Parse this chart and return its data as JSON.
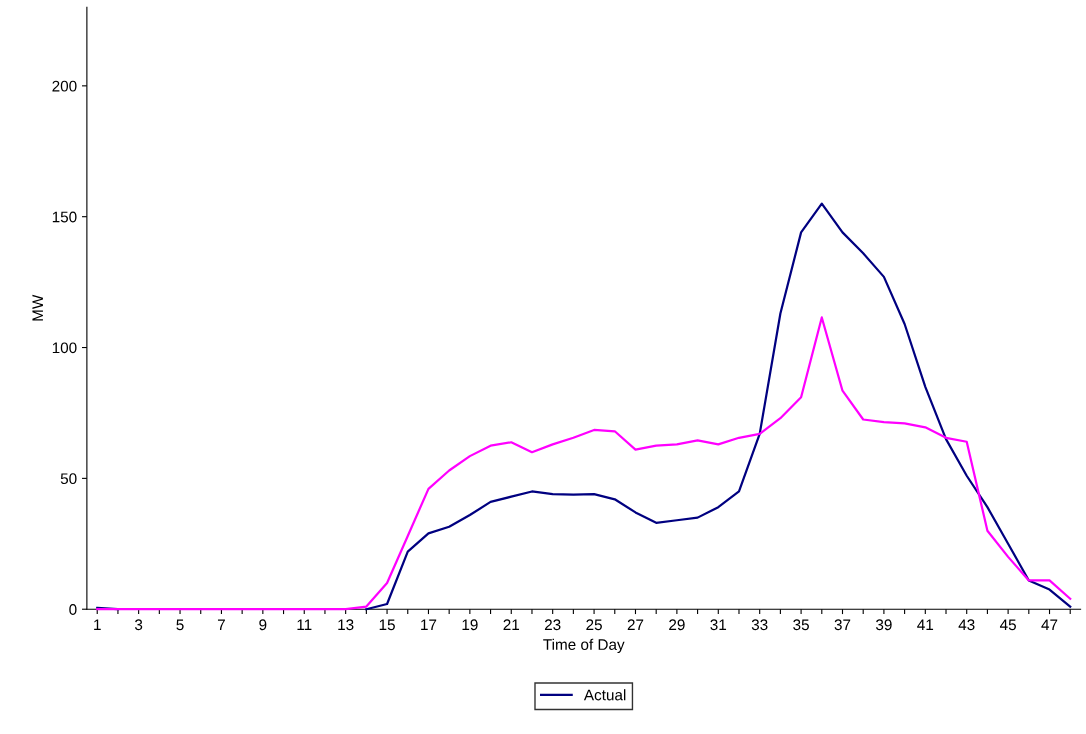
{
  "chart_data": {
    "type": "line",
    "xlabel": "Time of Day",
    "ylabel": "MW",
    "categories": [
      "1",
      null,
      "3",
      null,
      "5",
      null,
      "7",
      null,
      "9",
      null,
      "11",
      null,
      "13",
      null,
      "15",
      null,
      "17",
      null,
      "19",
      null,
      "21",
      null,
      "23",
      null,
      "25",
      null,
      "27",
      null,
      "29",
      null,
      "31",
      null,
      "33",
      null,
      "35",
      null,
      "37",
      null,
      "39",
      null,
      "41",
      null,
      "43",
      null,
      "45",
      null,
      "47",
      null
    ],
    "series": [
      {
        "name": "Actual",
        "color": "#000080",
        "values": [
          0.5,
          0,
          null,
          null,
          null,
          null,
          null,
          null,
          null,
          null,
          null,
          null,
          null,
          0,
          2,
          22,
          29,
          31.5,
          36,
          41,
          43,
          45,
          44,
          43.8,
          44,
          42,
          37,
          33,
          34,
          35,
          39,
          45,
          67,
          113,
          144,
          155,
          144,
          136,
          127,
          109,
          85,
          65,
          51,
          39,
          25,
          11,
          7.5,
          1
        ]
      },
      {
        "color": "#ff00ff",
        "values": [
          0,
          0,
          0,
          0,
          0,
          0,
          0,
          0,
          0,
          0,
          0,
          0,
          0,
          1,
          10,
          28,
          46,
          53,
          58.5,
          62.5,
          63.8,
          60,
          63,
          65.5,
          68.5,
          68,
          61,
          62.5,
          63,
          64.5,
          63,
          65.5,
          67,
          73,
          81,
          111.5,
          83.5,
          72.5,
          71.5,
          71,
          69.5,
          65.5,
          64,
          30,
          20,
          11,
          11,
          4
        ]
      }
    ],
    "ylim": [
      0,
      230
    ],
    "yticks": [
      0,
      50,
      100,
      150,
      200
    ],
    "grid": false,
    "legend": "bottom",
    "marker": "none",
    "line_style": "solid"
  }
}
